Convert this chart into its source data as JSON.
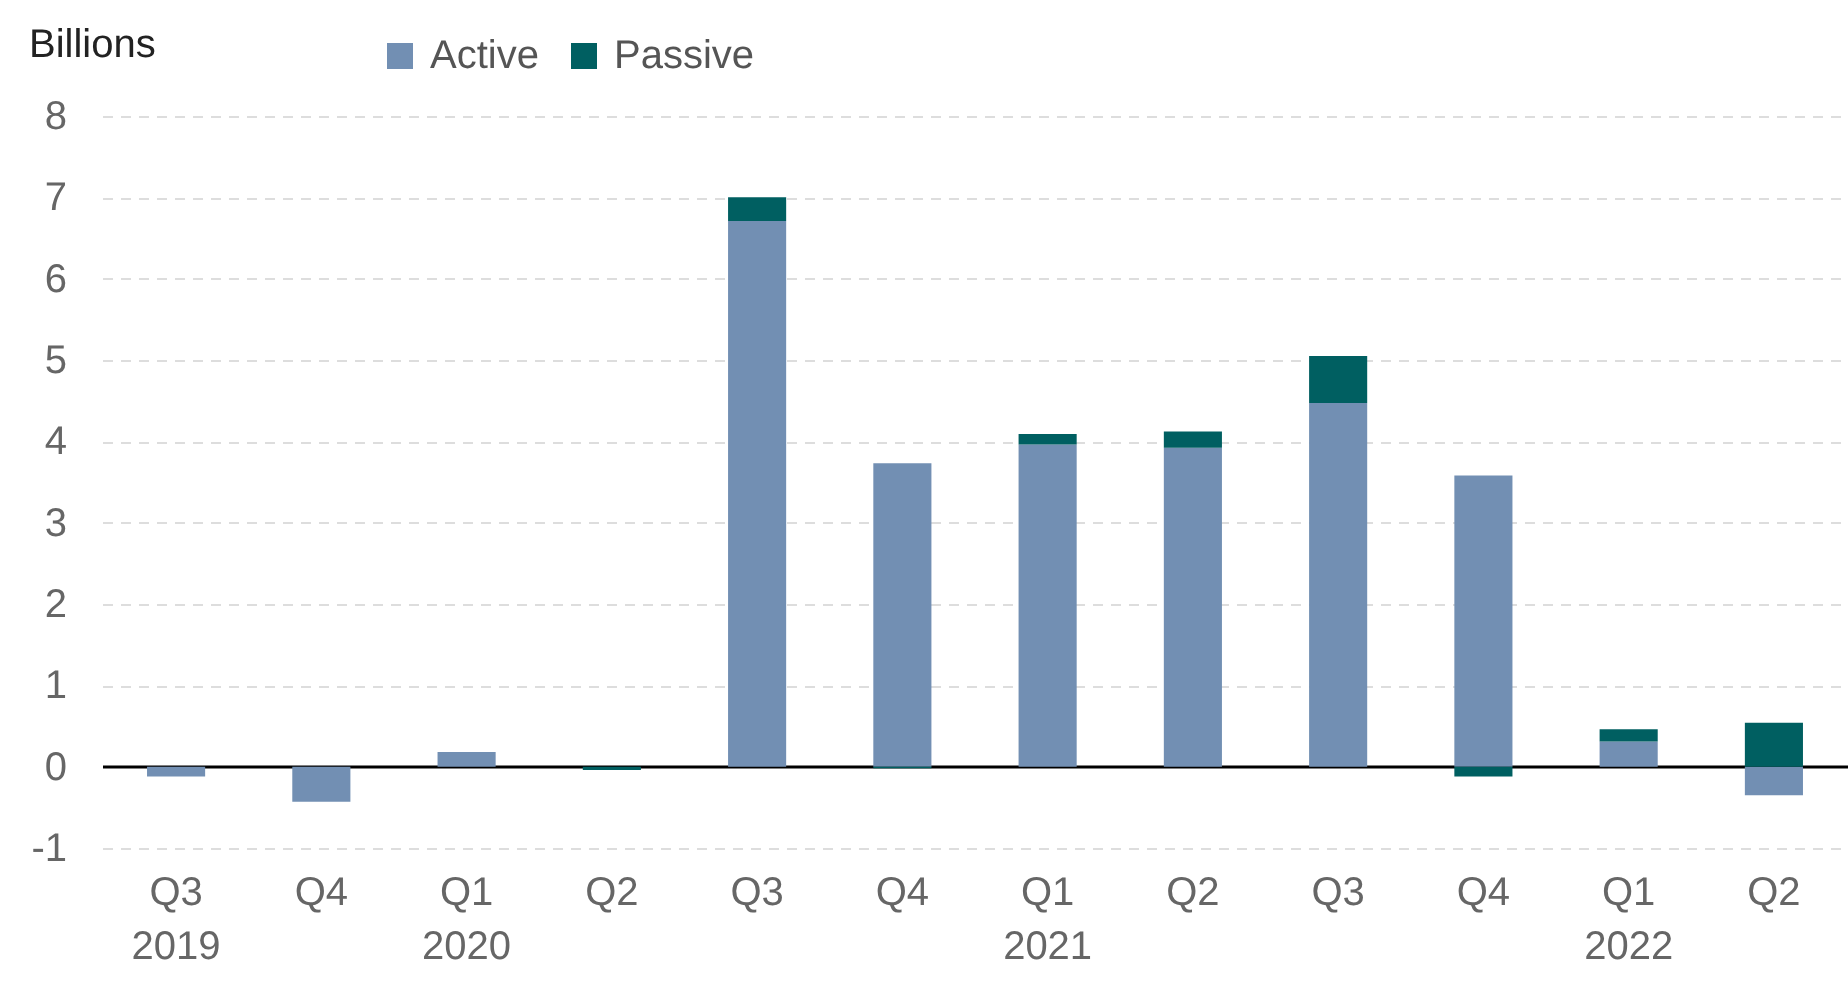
{
  "chart_data": {
    "type": "bar",
    "ylabel": "Billions",
    "categories": [
      "Q3\n2019",
      "Q4",
      "Q1\n2020",
      "Q2",
      "Q3",
      "Q4",
      "Q1\n2021",
      "Q2",
      "Q3",
      "Q4",
      "Q1\n2022",
      "Q2"
    ],
    "series": [
      {
        "name": "Active",
        "color": "#728fb3",
        "values": [
          -0.12,
          -0.43,
          0.18,
          null,
          6.71,
          3.73,
          3.96,
          3.92,
          4.47,
          3.58,
          0.31,
          -0.35
        ]
      },
      {
        "name": "Passive",
        "color": "#005f61",
        "values": [
          null,
          null,
          null,
          -0.04,
          0.29,
          -0.02,
          0.13,
          0.2,
          0.58,
          -0.12,
          0.15,
          0.54
        ]
      }
    ],
    "stacked": true,
    "ylim": [
      -1,
      8
    ],
    "yticks": [
      -1,
      0,
      1,
      2,
      3,
      4,
      5,
      6,
      7,
      8
    ],
    "grid": "y",
    "legend": "top"
  }
}
